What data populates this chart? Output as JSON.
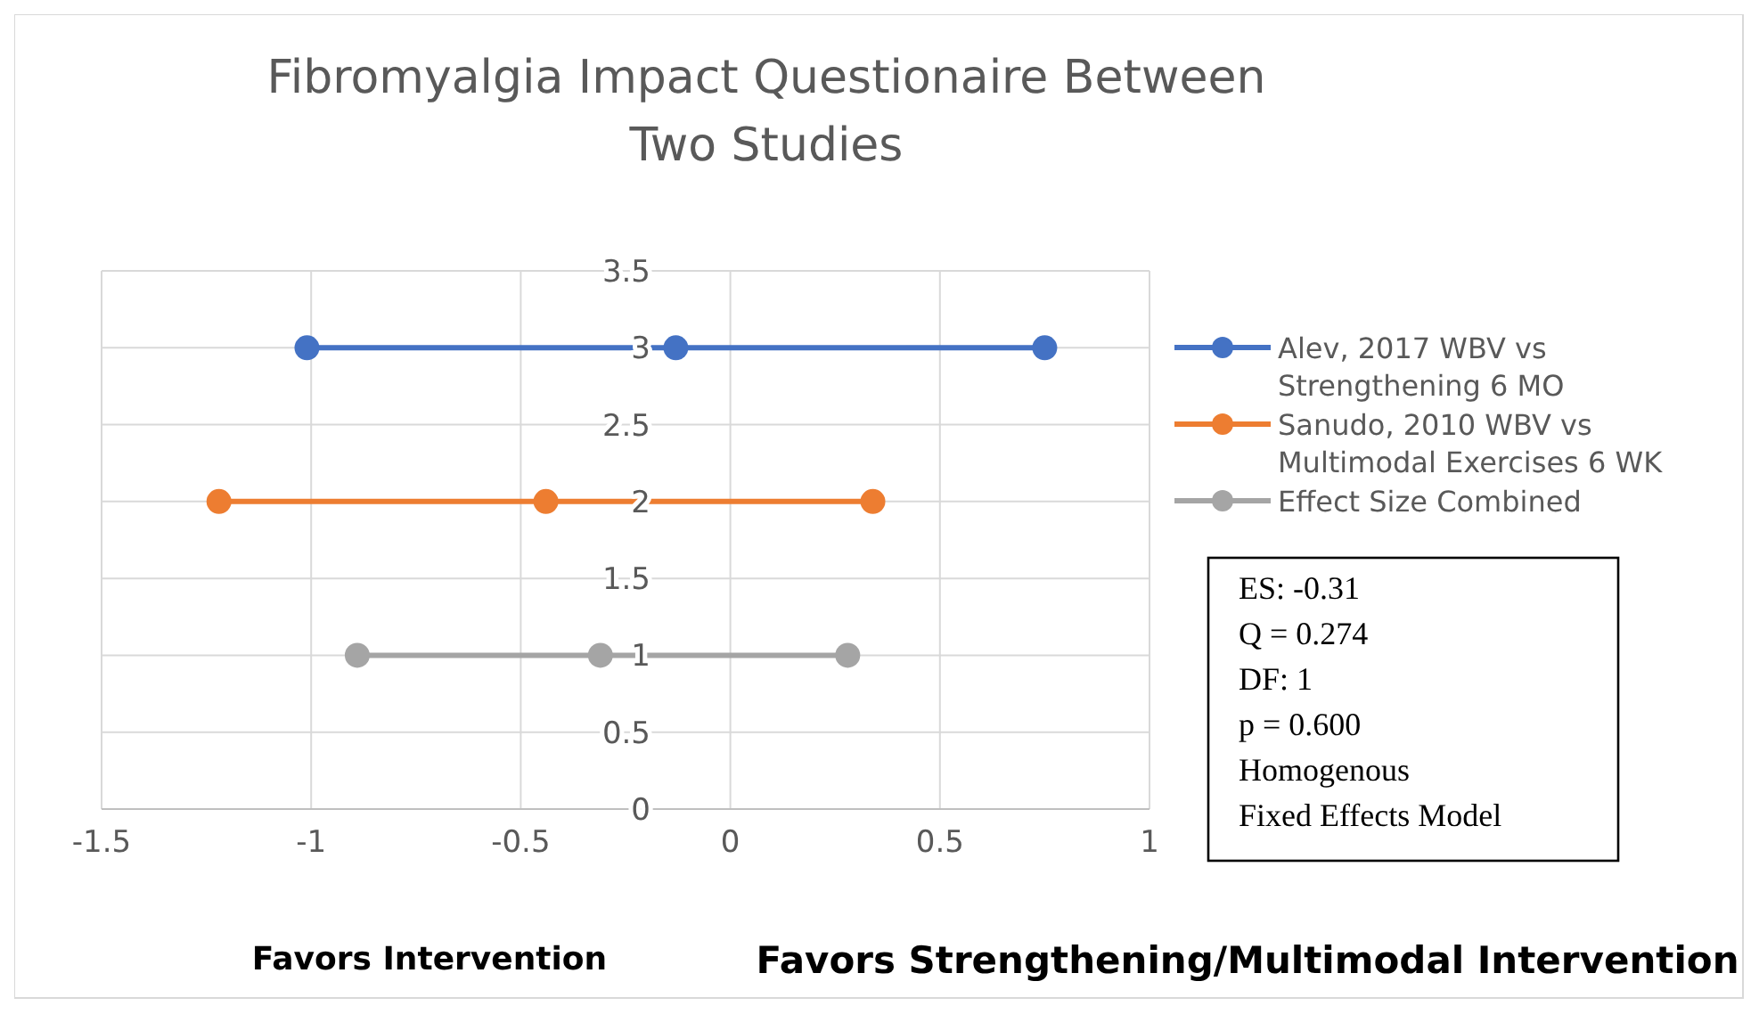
{
  "chart_data": {
    "type": "line",
    "title": "Fibromyalgia Impact Questionaire Between Two Studies",
    "series": [
      {
        "name": "Alev, 2017 WBV vs Strengthening 6 MO",
        "color": "#4472c4",
        "x": [
          -1.01,
          -0.13,
          0.75
        ],
        "values": [
          3,
          3,
          3
        ]
      },
      {
        "name": "Sanudo, 2010 WBV vs Multimodal Exercises 6 WK",
        "color": "#ed7d31",
        "x": [
          -1.22,
          -0.44,
          0.34
        ],
        "values": [
          2,
          2,
          2
        ]
      },
      {
        "name": "Effect Size Combined",
        "color": "#a5a5a5",
        "x": [
          -0.89,
          -0.31,
          0.28
        ],
        "values": [
          1,
          1,
          1
        ]
      }
    ],
    "xlim": [
      -1.5,
      1
    ],
    "xticks": [
      -1.5,
      -1,
      -0.5,
      0,
      0.5,
      1
    ],
    "ylim": [
      0,
      3.5
    ],
    "yticks": [
      0,
      0.5,
      1,
      1.5,
      2,
      2.5,
      3,
      3.5
    ],
    "grid": true,
    "legend": "right",
    "marker": "circle",
    "line_style": "solid",
    "annotations": [
      "Favors Intervention",
      "Favors Strengthening/Multimodal Intervention",
      "ES: -0.31",
      "Q = 0.274",
      "DF: 1",
      "p = 0.600",
      "Homogenous",
      "Fixed Effects Model"
    ]
  }
}
